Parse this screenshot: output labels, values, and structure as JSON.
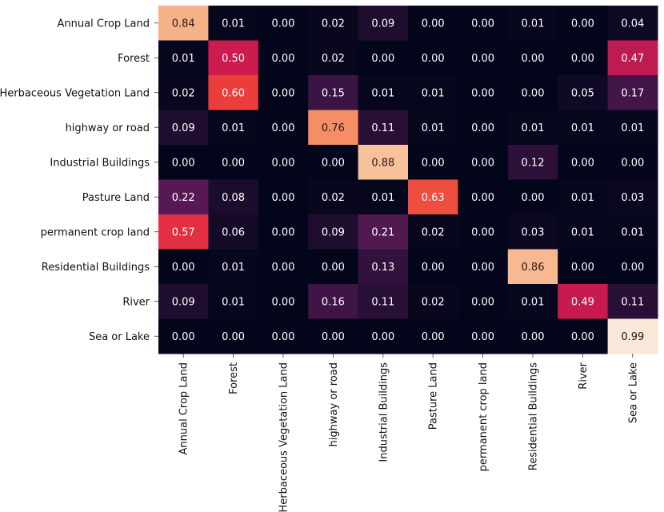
{
  "chart_data": {
    "type": "heatmap",
    "title": "",
    "xlabel": "",
    "ylabel": "",
    "row_labels": [
      "Annual Crop Land",
      "Forest",
      "Herbaceous Vegetation Land",
      "highway or road",
      "Industrial Buildings",
      "Pasture Land",
      "permanent crop land",
      "Residential Buildings",
      "River",
      "Sea or Lake"
    ],
    "col_labels": [
      "Annual Crop Land",
      "Forest",
      "Herbaceous Vegetation Land",
      "highway or road",
      "Industrial Buildings",
      "Pasture Land",
      "permanent crop land",
      "Residential Buildings",
      "River",
      "Sea or Lake"
    ],
    "values": [
      [
        0.84,
        0.01,
        0.0,
        0.02,
        0.09,
        0.0,
        0.0,
        0.01,
        0.0,
        0.04
      ],
      [
        0.01,
        0.5,
        0.0,
        0.02,
        0.0,
        0.0,
        0.0,
        0.0,
        0.0,
        0.47
      ],
      [
        0.02,
        0.6,
        0.0,
        0.15,
        0.01,
        0.01,
        0.0,
        0.0,
        0.05,
        0.17
      ],
      [
        0.09,
        0.01,
        0.0,
        0.76,
        0.11,
        0.01,
        0.0,
        0.01,
        0.01,
        0.01
      ],
      [
        0.0,
        0.0,
        0.0,
        0.0,
        0.88,
        0.0,
        0.0,
        0.12,
        0.0,
        0.0
      ],
      [
        0.22,
        0.08,
        0.0,
        0.02,
        0.01,
        0.63,
        0.0,
        0.0,
        0.01,
        0.03
      ],
      [
        0.57,
        0.06,
        0.0,
        0.09,
        0.21,
        0.02,
        0.0,
        0.03,
        0.01,
        0.01
      ],
      [
        0.0,
        0.01,
        0.0,
        0.0,
        0.13,
        0.0,
        0.0,
        0.86,
        0.0,
        0.0
      ],
      [
        0.09,
        0.01,
        0.0,
        0.16,
        0.11,
        0.02,
        0.0,
        0.01,
        0.49,
        0.11
      ],
      [
        0.0,
        0.0,
        0.0,
        0.0,
        0.0,
        0.0,
        0.0,
        0.0,
        0.0,
        0.99
      ]
    ],
    "value_format": "2 decimals",
    "colormap": "rocket",
    "vmin": 0,
    "vmax": 1,
    "colorbar": false
  }
}
